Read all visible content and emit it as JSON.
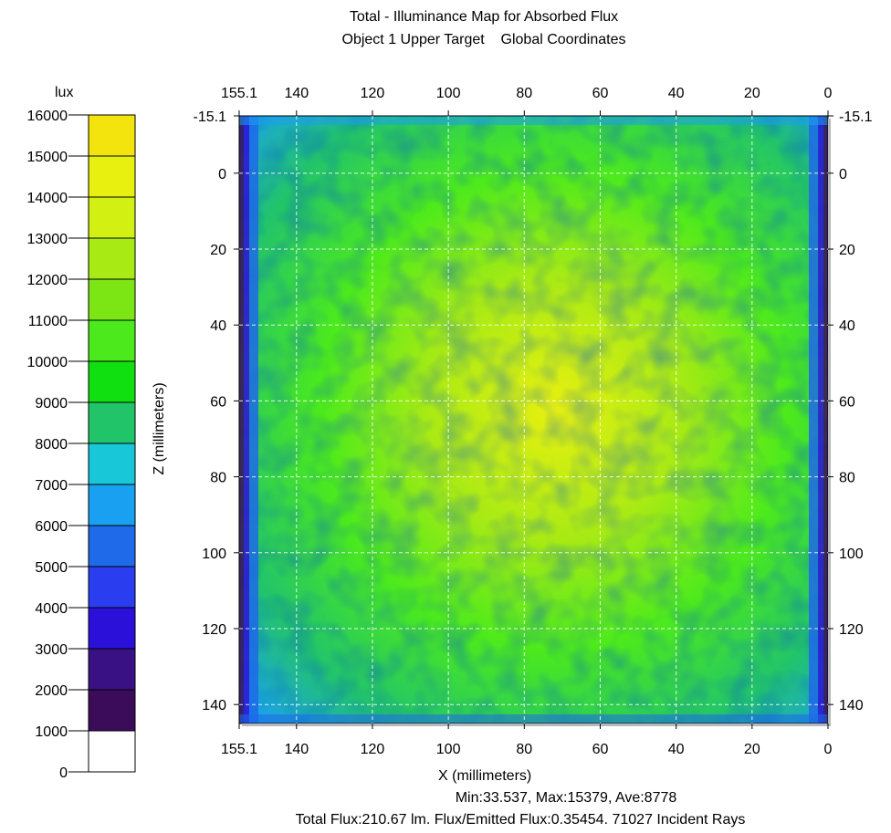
{
  "chart_data": {
    "type": "heatmap",
    "title": "Total - Illuminance Map for Absorbed Flux",
    "subtitle": "Object 1 Upper Target    Global Coordinates",
    "xlabel": "X (millimeters)",
    "ylabel": "Z (millimeters)",
    "x_ticks": [
      "155.1",
      "140",
      "120",
      "100",
      "80",
      "60",
      "40",
      "20",
      "0"
    ],
    "z_ticks_left": [
      "-15.1",
      "0",
      "20",
      "40",
      "60",
      "80",
      "100",
      "120",
      "140"
    ],
    "z_ticks_right": [
      "-15.1",
      "0",
      "20",
      "40",
      "60",
      "80",
      "100",
      "120",
      "140"
    ],
    "xlim": [
      155.1,
      0
    ],
    "zlim": [
      -15.1,
      145
    ],
    "grid": true,
    "colorbar": {
      "unit": "lux",
      "levels": [
        0,
        1000,
        2000,
        3000,
        4000,
        5000,
        6000,
        7000,
        8000,
        9000,
        10000,
        11000,
        12000,
        13000,
        14000,
        15000,
        16000
      ],
      "tick_labels": [
        "0",
        "1000",
        "2000",
        "3000",
        "4000",
        "5000",
        "6000",
        "7000",
        "8000",
        "9000",
        "10000",
        "11000",
        "12000",
        "13000",
        "14000",
        "15000",
        "16000"
      ],
      "colors": [
        "#ffffff",
        "#3b0c5a",
        "#3a1085",
        "#2a10d8",
        "#2a3ef0",
        "#1e6ae8",
        "#1aa0f0",
        "#18c8d8",
        "#22c46a",
        "#10e010",
        "#4cea1c",
        "#7ce614",
        "#a8ea14",
        "#d2f012",
        "#e8f010",
        "#f2e40c",
        "#e8c410"
      ]
    },
    "field": {
      "min_lux": 33.537,
      "max_lux": 15379,
      "mean_lux": 8778,
      "center_x_mm": 72,
      "center_z_mm": 62,
      "description_levels": "peak ~13000 lux near center, ~9000-11000 mid field, ~6000-7000 near edges, falling to below 2000 at the side boundaries"
    },
    "stats_line1": "Min:33.537, Max:15379, Ave:8778",
    "stats_line2": "Total Flux:210.67 lm. Flux/Emitted Flux:0.35454. 71027 Incident Rays"
  }
}
